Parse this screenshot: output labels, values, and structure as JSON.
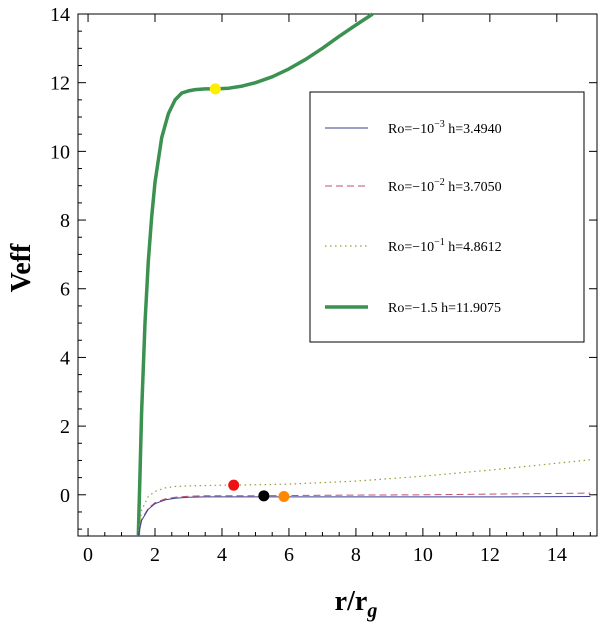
{
  "chart_data": {
    "type": "line",
    "title": "",
    "xlabel": "r/r",
    "xlabel_sub": "g",
    "ylabel": "Veff",
    "xlim": [
      -0.3,
      15.2
    ],
    "ylim": [
      -1.2,
      14
    ],
    "x_ticks": [
      0,
      2,
      4,
      6,
      8,
      10,
      12,
      14
    ],
    "y_ticks": [
      0,
      2,
      4,
      6,
      8,
      10,
      12,
      14
    ],
    "legend_position": "right",
    "series": [
      {
        "name": "Ro=-10^-3 h=3.4940",
        "legend": {
          "prefix": "Ro=−10",
          "exp": "−3",
          "suffix": " h=3.4940"
        },
        "color": "#3d3f8f",
        "style": "solid",
        "x": [
          1.5,
          1.6,
          1.8,
          2.0,
          2.3,
          2.6,
          3.0,
          3.5,
          4.0,
          5.0,
          6.0,
          8.0,
          10.0,
          12.0,
          15.0
        ],
        "values": [
          -1.2,
          -0.75,
          -0.42,
          -0.26,
          -0.15,
          -0.1,
          -0.07,
          -0.06,
          -0.06,
          -0.06,
          -0.06,
          -0.06,
          -0.06,
          -0.06,
          -0.05
        ]
      },
      {
        "name": "Ro=-10^-2 h=3.7050",
        "legend": {
          "prefix": "Ro=−10",
          "exp": "−2",
          "suffix": " h=3.7050"
        },
        "color": "#c0506b",
        "style": "dashed",
        "x": [
          1.5,
          1.6,
          1.8,
          2.0,
          2.3,
          2.6,
          3.0,
          3.5,
          4.0,
          5.0,
          6.0,
          8.0,
          10.0,
          12.0,
          15.0
        ],
        "values": [
          -1.2,
          -0.72,
          -0.39,
          -0.23,
          -0.12,
          -0.07,
          -0.04,
          -0.03,
          -0.03,
          -0.03,
          -0.02,
          -0.01,
          0.0,
          0.02,
          0.05
        ]
      },
      {
        "name": "Ro=-10^-1 h=4.8612",
        "legend": {
          "prefix": "Ro=−10",
          "exp": "−1",
          "suffix": " h=4.8612"
        },
        "color": "#9a9a38",
        "style": "dotted",
        "x": [
          1.5,
          1.6,
          1.8,
          2.0,
          2.3,
          2.6,
          3.0,
          3.5,
          4.0,
          5.0,
          6.0,
          8.0,
          10.0,
          12.0,
          15.0
        ],
        "values": [
          -1.2,
          -0.45,
          -0.05,
          0.1,
          0.2,
          0.24,
          0.26,
          0.27,
          0.28,
          0.29,
          0.31,
          0.4,
          0.54,
          0.72,
          1.02
        ]
      },
      {
        "name": "Ro=-1.5 h=11.9075",
        "legend": {
          "prefix": "Ro=−1.5",
          "exp": "",
          "suffix": " h=11.9075"
        },
        "color": "#3b9150",
        "style": "solid-thick",
        "x": [
          1.5,
          1.55,
          1.6,
          1.7,
          1.8,
          1.9,
          2.0,
          2.2,
          2.4,
          2.6,
          2.8,
          3.0,
          3.2,
          3.5,
          3.8,
          4.2,
          4.6,
          5.0,
          5.5,
          6.0,
          6.5,
          7.0,
          7.5,
          8.0,
          8.5
        ],
        "values": [
          -1.2,
          0.5,
          2.4,
          5.0,
          6.8,
          8.1,
          9.1,
          10.4,
          11.1,
          11.5,
          11.7,
          11.76,
          11.8,
          11.82,
          11.82,
          11.84,
          11.9,
          12.0,
          12.17,
          12.4,
          12.68,
          13.0,
          13.35,
          13.68,
          14.0
        ]
      }
    ],
    "markers": [
      {
        "name": "yellow-point",
        "x": 3.8,
        "y": 11.82,
        "color": "#ffee00"
      },
      {
        "name": "red-point",
        "x": 4.35,
        "y": 0.28,
        "color": "#ee1111"
      },
      {
        "name": "black-point",
        "x": 5.25,
        "y": -0.03,
        "color": "#000000"
      },
      {
        "name": "orange-point",
        "x": 5.85,
        "y": -0.05,
        "color": "#ff8800"
      }
    ]
  }
}
